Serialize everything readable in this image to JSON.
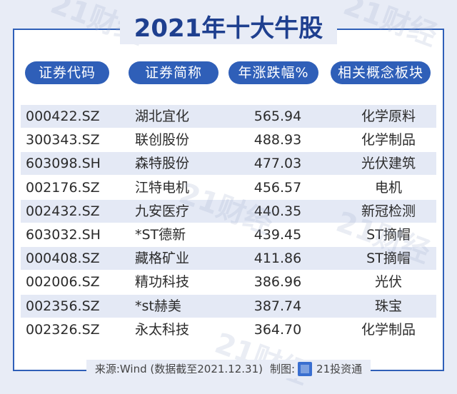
{
  "title": "2021年十大牛股",
  "watermark": "21财经",
  "headers": [
    "证券代码",
    "证券简称",
    "年涨跌幅%",
    "相关概念板块"
  ],
  "rows": [
    {
      "code": "000422.SZ",
      "name": "湖北宜化",
      "pct": "565.94",
      "concept": "化学原料"
    },
    {
      "code": "300343.SZ",
      "name": "联创股份",
      "pct": "488.93",
      "concept": "化学制品"
    },
    {
      "code": "603098.SH",
      "name": "森特股份",
      "pct": "477.03",
      "concept": "光伏建筑"
    },
    {
      "code": "002176.SZ",
      "name": "江特电机",
      "pct": "456.57",
      "concept": "电机"
    },
    {
      "code": "002432.SZ",
      "name": "九安医疗",
      "pct": "440.35",
      "concept": "新冠检测"
    },
    {
      "code": "603032.SH",
      "name": "*ST德新",
      "pct": "439.45",
      "concept": "ST摘帽"
    },
    {
      "code": "000408.SZ",
      "name": "藏格矿业",
      "pct": "411.86",
      "concept": "ST摘帽"
    },
    {
      "code": "002006.SZ",
      "name": "精功科技",
      "pct": "386.96",
      "concept": "光伏"
    },
    {
      "code": "002356.SZ",
      "name": "*st赫美",
      "pct": "387.74",
      "concept": "珠宝"
    },
    {
      "code": "002326.SZ",
      "name": "永太科技",
      "pct": "364.70",
      "concept": "化学制品"
    }
  ],
  "footer": {
    "source": "来源:Wind (数据截至2021.12.31)",
    "made_by_label": "制图:",
    "made_by": "21投资通"
  },
  "colors": {
    "accent": "#2f5fb8",
    "title": "#1e3f8f",
    "stripe": "#e4e9f5",
    "background": "#e8ecf6"
  }
}
